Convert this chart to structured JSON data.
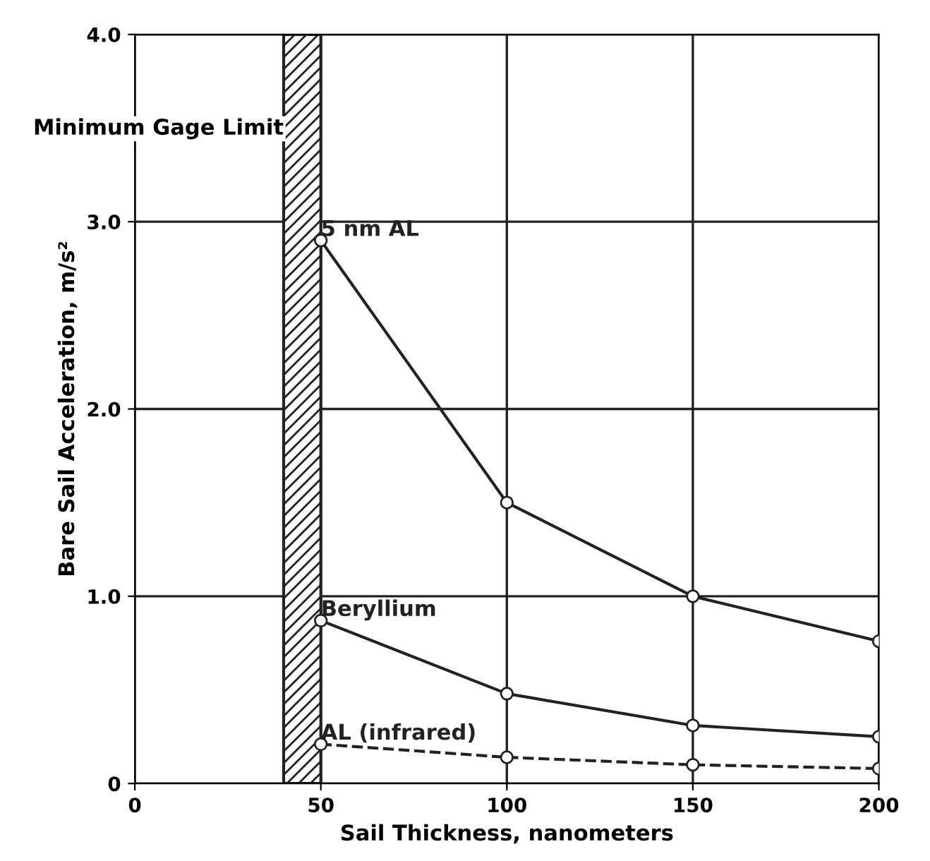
{
  "chart_data": {
    "type": "line",
    "xlabel": "Sail Thickness, nanometers",
    "ylabel": "Bare Sail Acceleration, m/s²",
    "x": [
      50,
      100,
      150,
      200
    ],
    "xlim": [
      0,
      200
    ],
    "xticks": [
      0,
      50,
      100,
      150,
      200
    ],
    "ylim": [
      0,
      4.0
    ],
    "yticks": [
      0,
      {
        "value": 1.0,
        "label": "1.0"
      },
      {
        "value": 2.0,
        "label": "2.0"
      },
      {
        "value": 3.0,
        "label": "3.0"
      },
      {
        "value": 4.0,
        "label": "4.0"
      }
    ],
    "grid": true,
    "marker": "circle",
    "series": [
      {
        "name": "5 nm AL",
        "color": "#222222",
        "values": [
          2.9,
          1.5,
          1.0,
          0.76
        ],
        "line_style": "solid"
      },
      {
        "name": "Beryllium",
        "color": "#222222",
        "values": [
          0.87,
          0.48,
          0.31,
          0.25
        ],
        "line_style": "solid"
      },
      {
        "name": "AL (infrared)",
        "color": "#222222",
        "values": [
          0.21,
          0.14,
          0.1,
          0.08
        ],
        "line_style": "dashed"
      }
    ],
    "bands": [
      {
        "axis": "x",
        "from": 40,
        "to": 50,
        "label": "Minimum Gage Limit",
        "color": "#222222"
      }
    ]
  }
}
